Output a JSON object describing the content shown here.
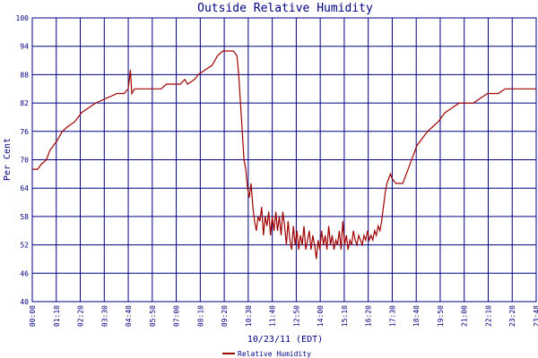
{
  "chart_data": {
    "type": "line",
    "title": "Outside Relative Humidity",
    "xlabel": "10/23/11 (EDT)",
    "ylabel": "Per Cent",
    "ylim": [
      40,
      100
    ],
    "yticks": [
      "40",
      "46",
      "52",
      "58",
      "64",
      "70",
      "76",
      "82",
      "88",
      "94",
      "100"
    ],
    "x_ticks": [
      "00:00",
      "01:10",
      "02:20",
      "03:30",
      "04:40",
      "05:50",
      "07:00",
      "08:10",
      "09:20",
      "10:30",
      "11:40",
      "12:50",
      "14:00",
      "15:10",
      "16:20",
      "17:30",
      "18:40",
      "19:50",
      "21:00",
      "22:10",
      "23:20",
      "23:48"
    ],
    "x_range_minutes": [
      0,
      1428
    ],
    "grid": true,
    "legend_position": "bottom-center",
    "colors": {
      "line": "#a00000",
      "grid": "#000080",
      "text": "#000080"
    },
    "series": [
      {
        "name": "Relative Humidity",
        "points": [
          [
            0,
            68
          ],
          [
            15,
            68
          ],
          [
            25,
            69
          ],
          [
            40,
            70
          ],
          [
            50,
            72
          ],
          [
            60,
            73
          ],
          [
            70,
            74
          ],
          [
            85,
            76
          ],
          [
            100,
            77
          ],
          [
            120,
            78
          ],
          [
            140,
            80
          ],
          [
            160,
            81
          ],
          [
            180,
            82
          ],
          [
            210,
            83
          ],
          [
            240,
            84
          ],
          [
            260,
            84
          ],
          [
            272,
            85
          ],
          [
            278,
            89
          ],
          [
            282,
            84
          ],
          [
            290,
            85
          ],
          [
            340,
            85
          ],
          [
            365,
            85
          ],
          [
            380,
            86
          ],
          [
            420,
            86
          ],
          [
            432,
            87
          ],
          [
            440,
            86
          ],
          [
            460,
            87
          ],
          [
            470,
            88
          ],
          [
            490,
            89
          ],
          [
            510,
            90
          ],
          [
            525,
            92
          ],
          [
            540,
            93
          ],
          [
            570,
            93
          ],
          [
            580,
            92
          ],
          [
            585,
            88
          ],
          [
            590,
            82
          ],
          [
            595,
            76
          ],
          [
            600,
            70
          ],
          [
            605,
            68
          ],
          [
            610,
            64
          ],
          [
            615,
            62
          ],
          [
            620,
            65
          ],
          [
            625,
            60
          ],
          [
            630,
            57
          ],
          [
            635,
            55
          ],
          [
            640,
            58
          ],
          [
            645,
            57
          ],
          [
            650,
            60
          ],
          [
            655,
            54
          ],
          [
            660,
            58
          ],
          [
            665,
            56
          ],
          [
            670,
            59
          ],
          [
            675,
            54
          ],
          [
            680,
            58
          ],
          [
            685,
            55
          ],
          [
            690,
            59
          ],
          [
            695,
            55
          ],
          [
            700,
            58
          ],
          [
            705,
            54
          ],
          [
            710,
            59
          ],
          [
            715,
            56
          ],
          [
            720,
            52
          ],
          [
            725,
            57
          ],
          [
            730,
            53
          ],
          [
            735,
            51
          ],
          [
            740,
            56
          ],
          [
            745,
            52
          ],
          [
            750,
            55
          ],
          [
            755,
            51
          ],
          [
            760,
            54
          ],
          [
            765,
            52
          ],
          [
            770,
            56
          ],
          [
            775,
            51
          ],
          [
            780,
            53
          ],
          [
            785,
            55
          ],
          [
            790,
            51
          ],
          [
            795,
            54
          ],
          [
            800,
            52
          ],
          [
            805,
            49
          ],
          [
            810,
            53
          ],
          [
            815,
            51
          ],
          [
            820,
            55
          ],
          [
            825,
            52
          ],
          [
            830,
            54
          ],
          [
            835,
            51
          ],
          [
            840,
            56
          ],
          [
            845,
            52
          ],
          [
            850,
            54
          ],
          [
            855,
            51
          ],
          [
            860,
            53
          ],
          [
            865,
            52
          ],
          [
            870,
            55
          ],
          [
            875,
            51
          ],
          [
            880,
            57
          ],
          [
            885,
            52
          ],
          [
            890,
            54
          ],
          [
            895,
            51
          ],
          [
            900,
            53
          ],
          [
            905,
            52
          ],
          [
            910,
            55
          ],
          [
            915,
            53
          ],
          [
            920,
            52
          ],
          [
            925,
            54
          ],
          [
            930,
            53
          ],
          [
            935,
            52
          ],
          [
            940,
            54
          ],
          [
            945,
            53
          ],
          [
            950,
            55
          ],
          [
            955,
            53
          ],
          [
            960,
            54
          ],
          [
            965,
            53
          ],
          [
            970,
            55
          ],
          [
            975,
            54
          ],
          [
            980,
            56
          ],
          [
            985,
            55
          ],
          [
            990,
            57
          ],
          [
            995,
            60
          ],
          [
            1000,
            63
          ],
          [
            1005,
            65
          ],
          [
            1010,
            66
          ],
          [
            1015,
            67
          ],
          [
            1020,
            66
          ],
          [
            1030,
            65
          ],
          [
            1050,
            65
          ],
          [
            1055,
            66
          ],
          [
            1060,
            67
          ],
          [
            1070,
            69
          ],
          [
            1080,
            71
          ],
          [
            1090,
            73
          ],
          [
            1100,
            74
          ],
          [
            1110,
            75
          ],
          [
            1120,
            76
          ],
          [
            1135,
            77
          ],
          [
            1150,
            78
          ],
          [
            1160,
            79
          ],
          [
            1170,
            80
          ],
          [
            1190,
            81
          ],
          [
            1210,
            82
          ],
          [
            1250,
            82
          ],
          [
            1270,
            83
          ],
          [
            1290,
            84
          ],
          [
            1320,
            84
          ],
          [
            1340,
            85
          ],
          [
            1428,
            85
          ]
        ]
      }
    ]
  }
}
